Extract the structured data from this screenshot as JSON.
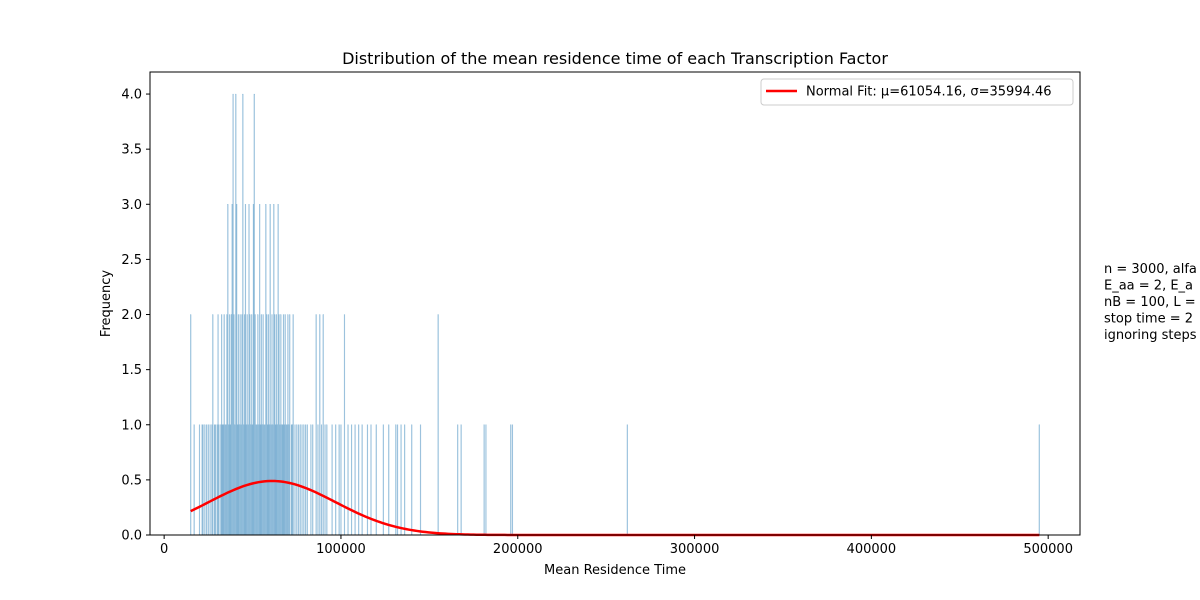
{
  "chart_data": {
    "type": "bar",
    "title": "Distribution of the mean residence time of each Transcription Factor",
    "xlabel": "Mean Residence Time",
    "ylabel": "Frequency",
    "xlim": [
      -8000,
      518000
    ],
    "ylim": [
      0,
      4.2
    ],
    "xticks": [
      {
        "value": 0,
        "label": "0"
      },
      {
        "value": 100000,
        "label": "100000"
      },
      {
        "value": 200000,
        "label": "200000"
      },
      {
        "value": 300000,
        "label": "300000"
      },
      {
        "value": 400000,
        "label": "400000"
      },
      {
        "value": 500000,
        "label": "500000"
      }
    ],
    "yticks": [
      {
        "value": 0.0,
        "label": "0.0"
      },
      {
        "value": 0.5,
        "label": "0.5"
      },
      {
        "value": 1.0,
        "label": "1.0"
      },
      {
        "value": 1.5,
        "label": "1.5"
      },
      {
        "value": 2.0,
        "label": "2.0"
      },
      {
        "value": 2.5,
        "label": "2.5"
      },
      {
        "value": 3.0,
        "label": "3.0"
      },
      {
        "value": 3.5,
        "label": "3.5"
      },
      {
        "value": 4.0,
        "label": "4.0"
      }
    ],
    "grid": false,
    "histogram": {
      "color": "#1f77b4",
      "bin_width": 480,
      "bars": [
        [
          15000,
          2
        ],
        [
          17000,
          1
        ],
        [
          20000,
          1
        ],
        [
          21500,
          1
        ],
        [
          22000,
          1
        ],
        [
          23000,
          1
        ],
        [
          24000,
          1
        ],
        [
          25000,
          1
        ],
        [
          26000,
          1
        ],
        [
          27000,
          1
        ],
        [
          27500,
          2
        ],
        [
          28500,
          1
        ],
        [
          29000,
          1
        ],
        [
          30000,
          1
        ],
        [
          30500,
          2
        ],
        [
          31000,
          1
        ],
        [
          32000,
          1
        ],
        [
          32500,
          2
        ],
        [
          33000,
          1
        ],
        [
          33500,
          1
        ],
        [
          34000,
          2
        ],
        [
          34500,
          1
        ],
        [
          35000,
          1
        ],
        [
          35500,
          2
        ],
        [
          36000,
          3
        ],
        [
          36500,
          1
        ],
        [
          37000,
          2
        ],
        [
          37500,
          1
        ],
        [
          38000,
          2
        ],
        [
          38500,
          3
        ],
        [
          39000,
          4
        ],
        [
          39500,
          2
        ],
        [
          40000,
          1
        ],
        [
          40500,
          4
        ],
        [
          41000,
          3
        ],
        [
          41500,
          1
        ],
        [
          42000,
          2
        ],
        [
          42500,
          1
        ],
        [
          43000,
          2
        ],
        [
          43500,
          1
        ],
        [
          44000,
          2
        ],
        [
          44500,
          4
        ],
        [
          45000,
          1
        ],
        [
          45500,
          2
        ],
        [
          46000,
          3
        ],
        [
          46500,
          1
        ],
        [
          47000,
          2
        ],
        [
          47500,
          1
        ],
        [
          48000,
          3
        ],
        [
          48500,
          2
        ],
        [
          49000,
          1
        ],
        [
          49500,
          2
        ],
        [
          50000,
          1
        ],
        [
          50500,
          3
        ],
        [
          51000,
          4
        ],
        [
          51500,
          2
        ],
        [
          52000,
          1
        ],
        [
          52500,
          1
        ],
        [
          53000,
          2
        ],
        [
          53500,
          1
        ],
        [
          54000,
          3
        ],
        [
          54500,
          1
        ],
        [
          55000,
          2
        ],
        [
          55500,
          1
        ],
        [
          56000,
          2
        ],
        [
          56500,
          1
        ],
        [
          57000,
          1
        ],
        [
          57500,
          3
        ],
        [
          58000,
          2
        ],
        [
          58500,
          1
        ],
        [
          59000,
          2
        ],
        [
          59500,
          1
        ],
        [
          60000,
          3
        ],
        [
          60500,
          1
        ],
        [
          61000,
          2
        ],
        [
          61500,
          1
        ],
        [
          62000,
          3
        ],
        [
          62500,
          2
        ],
        [
          63000,
          1
        ],
        [
          63500,
          2
        ],
        [
          64000,
          1
        ],
        [
          64500,
          3
        ],
        [
          65000,
          2
        ],
        [
          65500,
          1
        ],
        [
          66000,
          2
        ],
        [
          66500,
          1
        ],
        [
          67000,
          1
        ],
        [
          67500,
          2
        ],
        [
          68000,
          1
        ],
        [
          68500,
          2
        ],
        [
          69000,
          1
        ],
        [
          69500,
          1
        ],
        [
          70000,
          2
        ],
        [
          70500,
          1
        ],
        [
          71000,
          2
        ],
        [
          72000,
          1
        ],
        [
          72500,
          1
        ],
        [
          73000,
          2
        ],
        [
          74000,
          1
        ],
        [
          75000,
          1
        ],
        [
          76000,
          1
        ],
        [
          77000,
          1
        ],
        [
          78000,
          1
        ],
        [
          79000,
          1
        ],
        [
          80000,
          1
        ],
        [
          81000,
          1
        ],
        [
          83000,
          1
        ],
        [
          84000,
          1
        ],
        [
          86000,
          2
        ],
        [
          87000,
          1
        ],
        [
          88000,
          2
        ],
        [
          89000,
          1
        ],
        [
          90000,
          2
        ],
        [
          91000,
          1
        ],
        [
          92000,
          1
        ],
        [
          95000,
          1
        ],
        [
          97000,
          1
        ],
        [
          99000,
          1
        ],
        [
          100000,
          1
        ],
        [
          102000,
          2
        ],
        [
          104000,
          1
        ],
        [
          106000,
          1
        ],
        [
          108000,
          1
        ],
        [
          110000,
          1
        ],
        [
          112000,
          1
        ],
        [
          115000,
          1
        ],
        [
          117000,
          1
        ],
        [
          120000,
          1
        ],
        [
          124000,
          1
        ],
        [
          127000,
          1
        ],
        [
          131000,
          1
        ],
        [
          132000,
          1
        ],
        [
          134000,
          1
        ],
        [
          136000,
          1
        ],
        [
          140000,
          1
        ],
        [
          145000,
          1
        ],
        [
          155000,
          2
        ],
        [
          166000,
          1
        ],
        [
          168000,
          1
        ],
        [
          181000,
          1
        ],
        [
          182000,
          1
        ],
        [
          196000,
          1
        ],
        [
          197000,
          1
        ],
        [
          262000,
          1
        ],
        [
          495000,
          1
        ]
      ]
    },
    "series": [
      {
        "name": "Normal Fit: μ=61054.16, σ=35994.46",
        "type": "line",
        "color": "#ff0000",
        "mu": 61054.16,
        "sigma": 35994.46,
        "peak": 0.49,
        "x_range": [
          15000,
          495000
        ]
      }
    ],
    "legend": {
      "position": "top-right",
      "label": "Normal Fit: μ=61054.16, σ=35994.46"
    },
    "annotation_lines": [
      "n = 3000, alfa",
      "E_aa = 2, E_a",
      "nB = 100, L =",
      "stop time = 2",
      "ignoring steps"
    ]
  }
}
